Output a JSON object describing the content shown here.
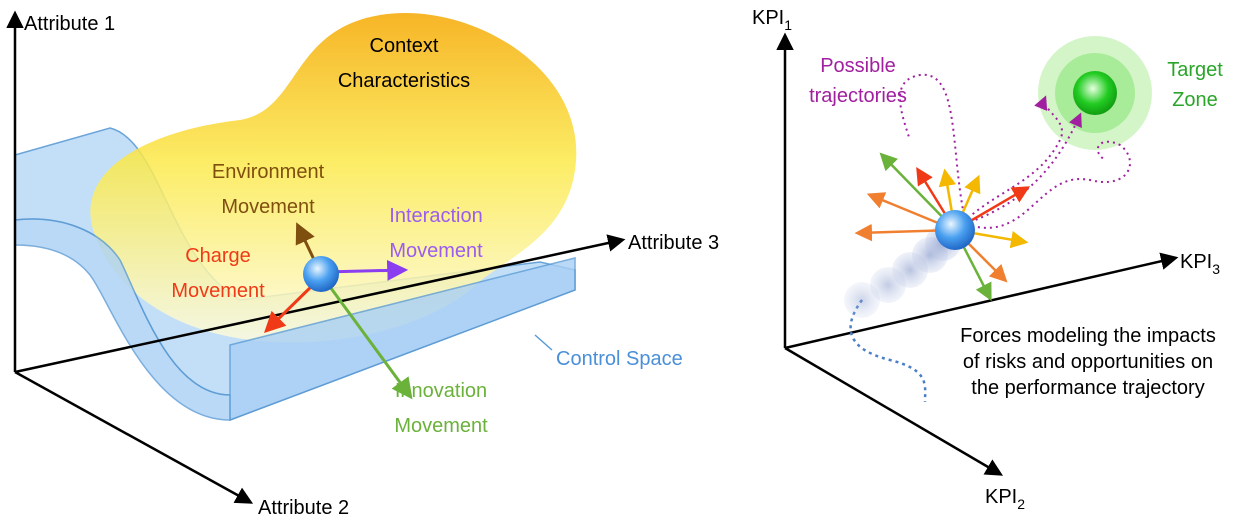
{
  "left": {
    "axes": {
      "attribute1": "Attribute 1",
      "attribute2": "Attribute 2",
      "attribute3": "Attribute 3"
    },
    "context": [
      "Context",
      "Characteristics"
    ],
    "environment": [
      "Environment",
      "Movement"
    ],
    "interaction": [
      "Interaction",
      "Movement"
    ],
    "charge": [
      "Charge",
      "Movement"
    ],
    "innovation": [
      "Innovation",
      "Movement"
    ],
    "control_space": "Control Space"
  },
  "right": {
    "axes": {
      "kpi1": {
        "text": "KPI",
        "sub": "1"
      },
      "kpi2": {
        "text": "KPI",
        "sub": "2"
      },
      "kpi3": {
        "text": "KPI",
        "sub": "3"
      }
    },
    "possible": [
      "Possible",
      "trajectories"
    ],
    "target": [
      "Target",
      "Zone"
    ],
    "forces": [
      "Forces modeling the impacts",
      "of risks and opportunities on",
      "the performance trajectory"
    ]
  }
}
